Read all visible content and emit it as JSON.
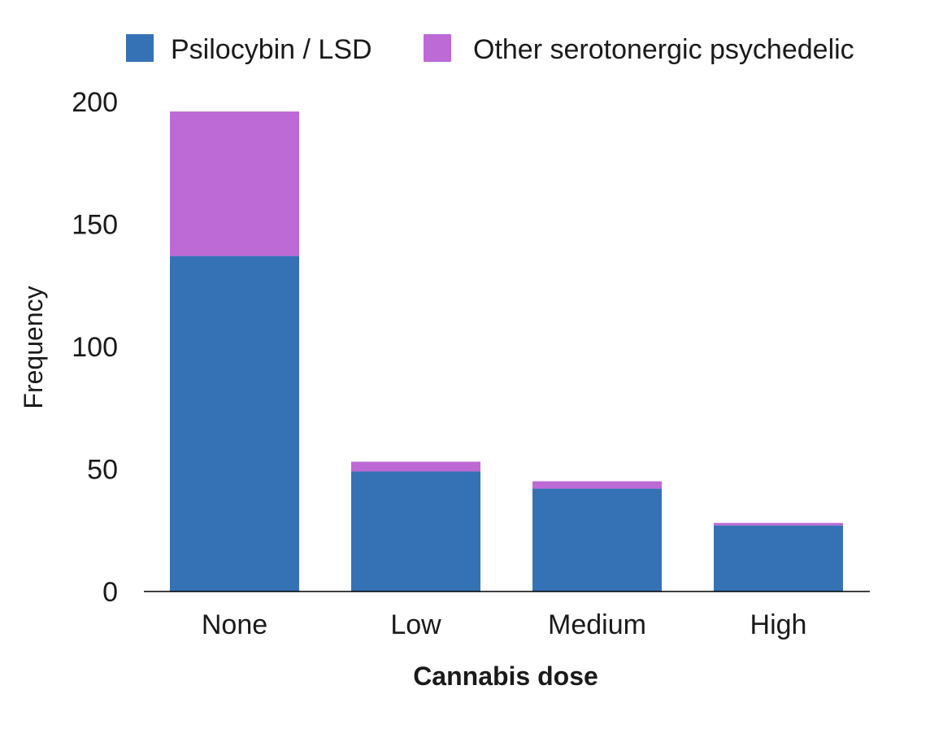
{
  "chart_data": {
    "type": "bar",
    "stacked": true,
    "categories": [
      "None",
      "Low",
      "Medium",
      "High"
    ],
    "series": [
      {
        "name": "Psilocybin / LSD",
        "values": [
          137,
          49,
          42,
          27
        ],
        "color": "#3572B5"
      },
      {
        "name": "Other serotonergic psychedelic",
        "values": [
          59,
          4,
          3,
          1
        ],
        "color": "#BD69D6"
      }
    ],
    "xlabel": "Cannabis dose",
    "ylabel": "Frequency",
    "ylim": [
      0,
      200
    ],
    "yticks": [
      "0",
      "50",
      "100",
      "150",
      "200"
    ],
    "grid": false,
    "legend_position": "top"
  }
}
